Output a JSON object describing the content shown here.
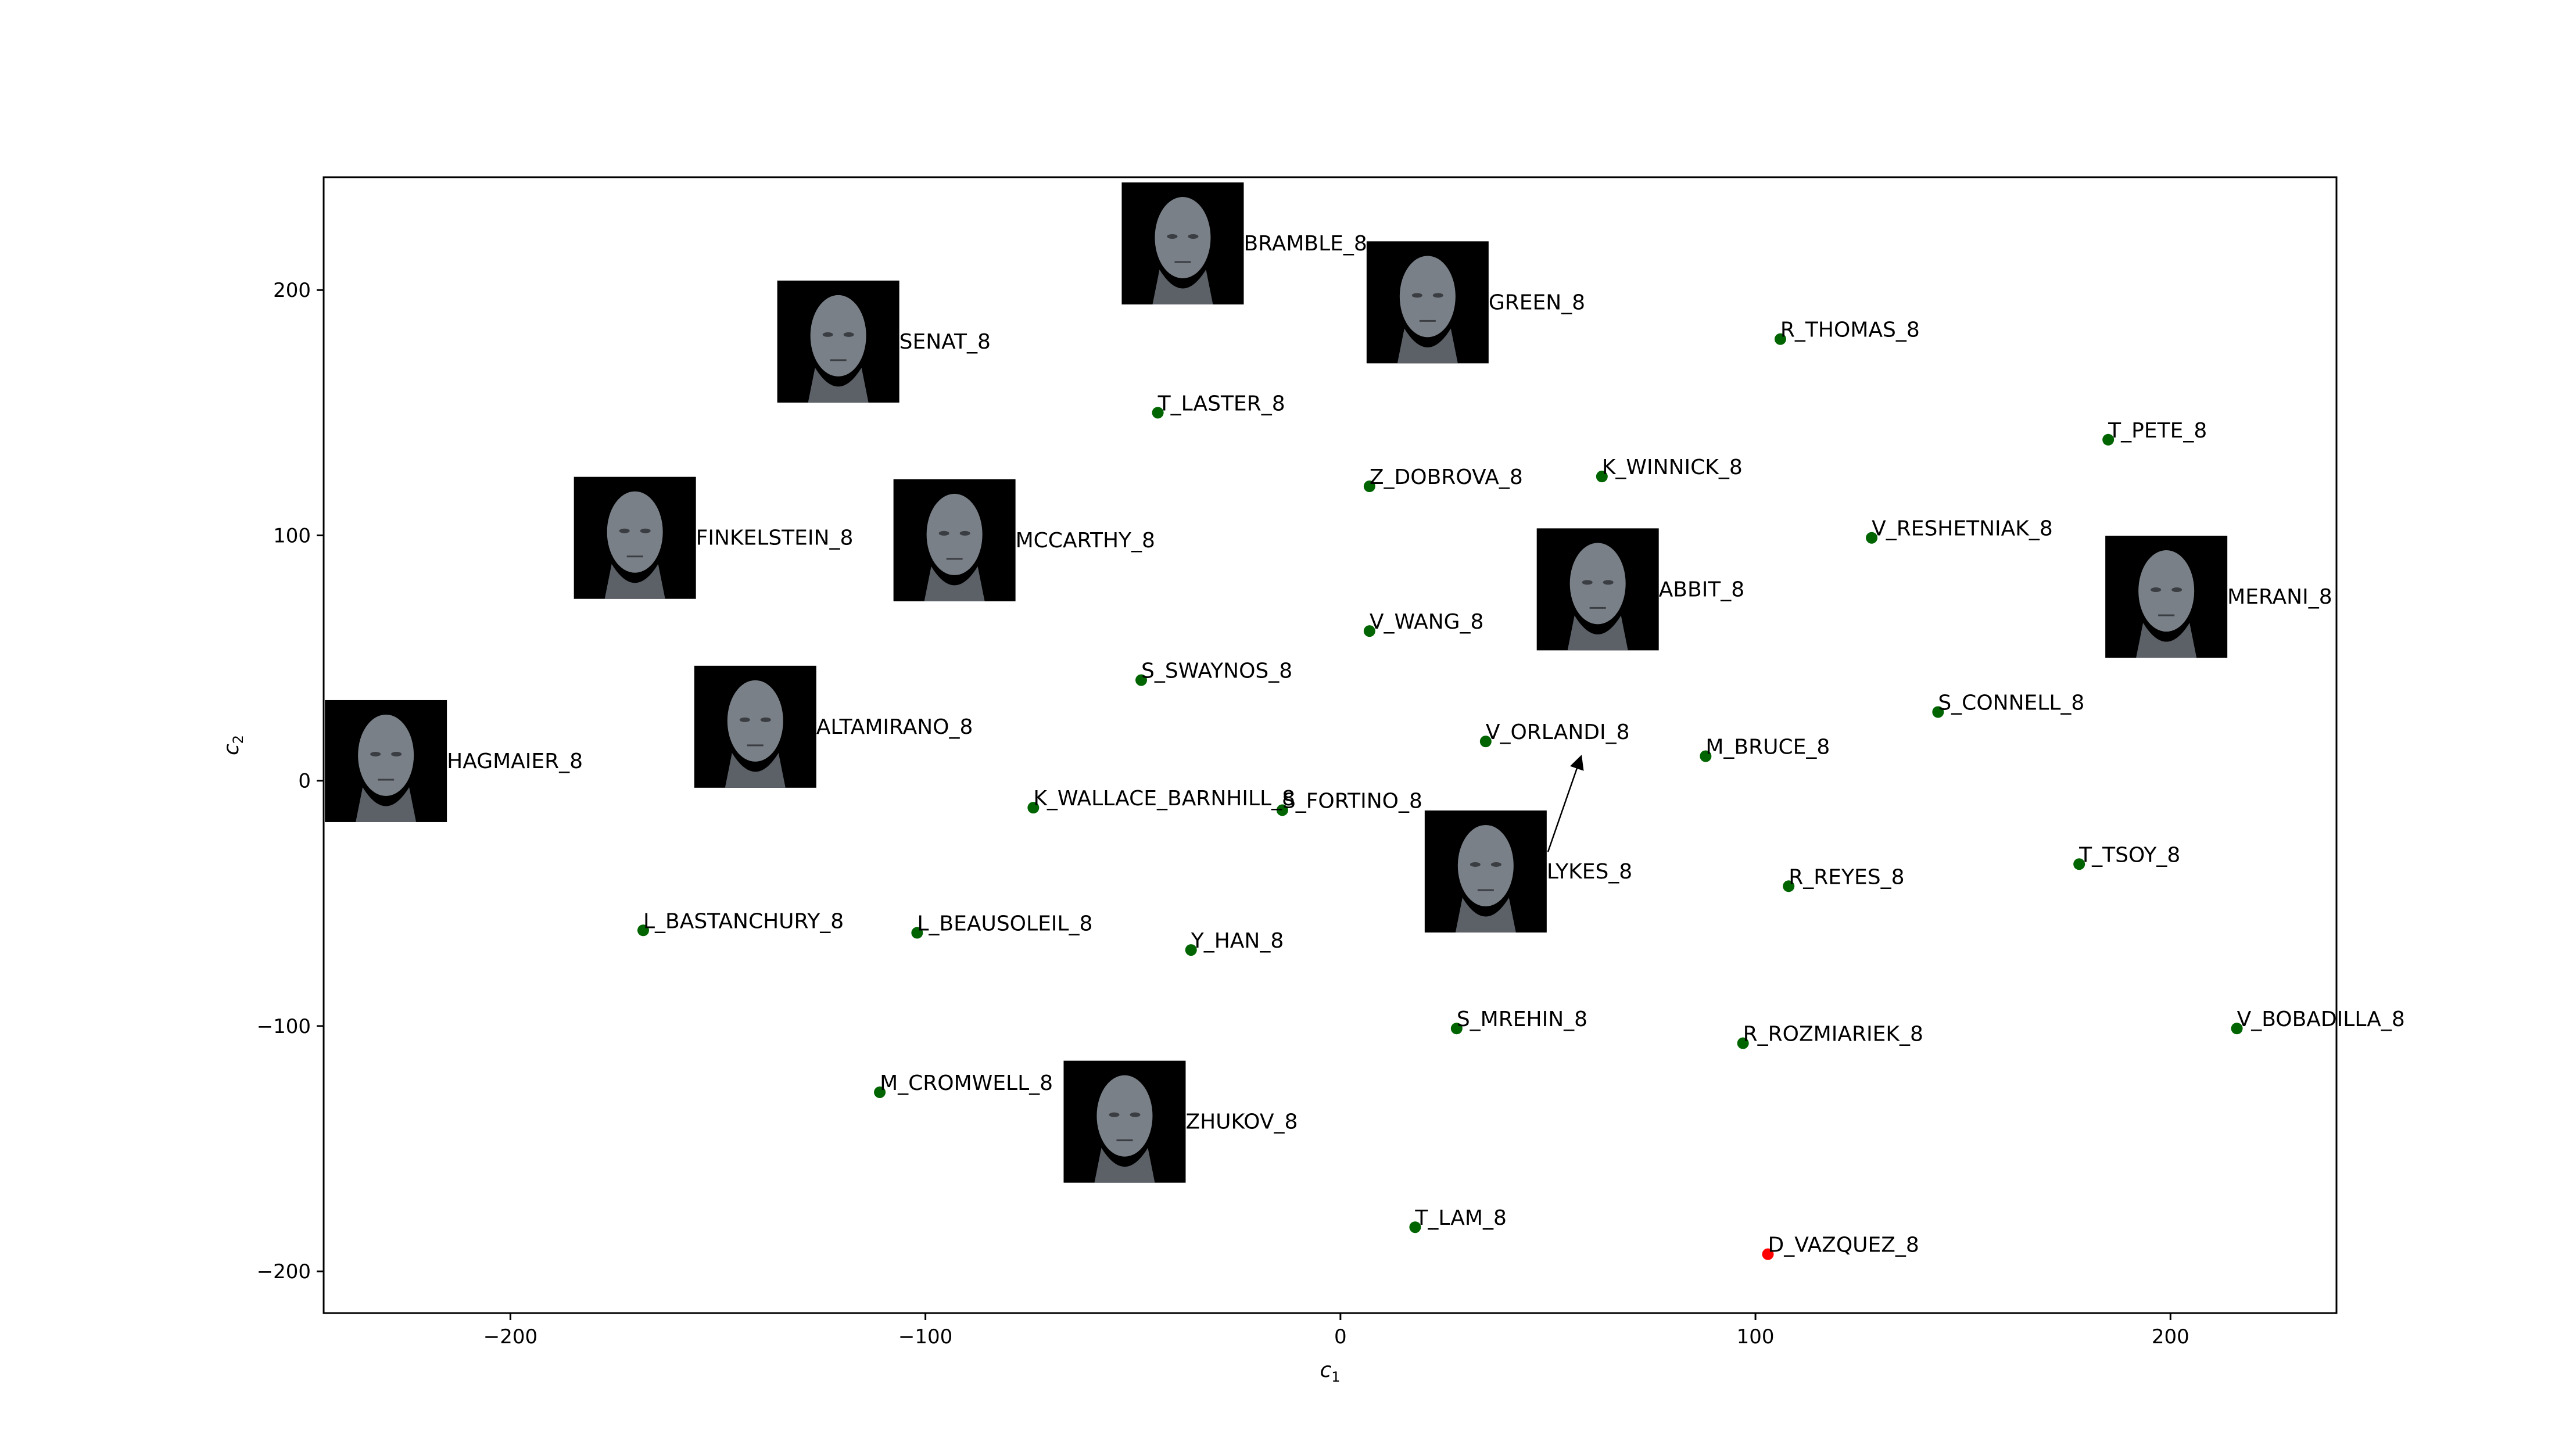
{
  "chart_data": {
    "type": "scatter",
    "title": "",
    "xlabel": "c",
    "xlabel_sub": "1",
    "ylabel": "c",
    "ylabel_sub": "2",
    "xlim": [
      -245,
      240
    ],
    "ylim": [
      -217,
      246
    ],
    "xticks": [
      -200,
      -100,
      0,
      100,
      200
    ],
    "yticks": [
      -200,
      -100,
      0,
      100,
      200
    ],
    "xtick_labels": [
      "−200",
      "−100",
      "0",
      "100",
      "200"
    ],
    "ytick_labels": [
      "−200",
      "−100",
      "0",
      "100",
      "200"
    ],
    "grid": false,
    "colors": {
      "point": "#006400",
      "highlight": "#ff0000",
      "face_bg": "#000000",
      "axes": "#000000"
    },
    "points": [
      {
        "label": "R_THOMAS_8",
        "x": 106,
        "y": 180,
        "color": "green"
      },
      {
        "label": "T_PETE_8",
        "x": 185,
        "y": 139,
        "color": "green"
      },
      {
        "label": "T_LASTER_8",
        "x": -44,
        "y": 150,
        "color": "green"
      },
      {
        "label": "Z_DOBROVA_8",
        "x": 7,
        "y": 120,
        "color": "green"
      },
      {
        "label": "K_WINNICK_8",
        "x": 63,
        "y": 124,
        "color": "green"
      },
      {
        "label": "V_RESHETNIAK_8",
        "x": 128,
        "y": 99,
        "color": "green"
      },
      {
        "label": "V_WANG_8",
        "x": 7,
        "y": 61,
        "color": "green"
      },
      {
        "label": "S_SWAYNOS_8",
        "x": -48,
        "y": 41,
        "color": "green"
      },
      {
        "label": "S_CONNELL_8",
        "x": 144,
        "y": 28,
        "color": "green"
      },
      {
        "label": "V_ORLANDI_8",
        "x": 35,
        "y": 16,
        "color": "green"
      },
      {
        "label": "M_BRUCE_8",
        "x": 88,
        "y": 10,
        "color": "green"
      },
      {
        "label": "K_WALLACE_BARNHILL_8",
        "x": -74,
        "y": -11,
        "color": "green"
      },
      {
        "label": "S_FORTINO_8",
        "x": -14,
        "y": -12,
        "color": "green"
      },
      {
        "label": "T_TSOY_8",
        "x": 178,
        "y": -34,
        "color": "green"
      },
      {
        "label": "R_REYES_8",
        "x": 108,
        "y": -43,
        "color": "green"
      },
      {
        "label": "L_BASTANCHURY_8",
        "x": -168,
        "y": -61,
        "color": "green"
      },
      {
        "label": "L_BEAUSOLEIL_8",
        "x": -102,
        "y": -62,
        "color": "green"
      },
      {
        "label": "Y_HAN_8",
        "x": -36,
        "y": -69,
        "color": "green"
      },
      {
        "label": "S_MREHIN_8",
        "x": 28,
        "y": -101,
        "color": "green"
      },
      {
        "label": "R_ROZMIARIEK_8",
        "x": 97,
        "y": -107,
        "color": "green"
      },
      {
        "label": "V_BOBADILLA_8",
        "x": 216,
        "y": -101,
        "color": "green"
      },
      {
        "label": "M_CROMWELL_8",
        "x": -111,
        "y": -127,
        "color": "green"
      },
      {
        "label": "T_LAM_8",
        "x": 18,
        "y": -182,
        "color": "green"
      },
      {
        "label": "D_VAZQUEZ_8",
        "x": 103,
        "y": -193,
        "color": "red"
      }
    ],
    "image_points": [
      {
        "label": "BRAMBLE_8",
        "x": -38,
        "y": 219
      },
      {
        "label": "GREEN_8",
        "x": 21,
        "y": 195
      },
      {
        "label": "SENAT_8",
        "x": -121,
        "y": 179
      },
      {
        "label": "FINKELSTEIN_8",
        "x": -170,
        "y": 99
      },
      {
        "label": "MCCARTHY_8",
        "x": -93,
        "y": 98
      },
      {
        "label": "ABBIT_8",
        "x": 62,
        "y": 78
      },
      {
        "label": "MERANI_8",
        "x": 199,
        "y": 75
      },
      {
        "label": "ALTAMIRANO_8",
        "x": -141,
        "y": 22
      },
      {
        "label": "HAGMAIER_8",
        "x": -230,
        "y": 8
      },
      {
        "label": "LYKES_8",
        "x": 35,
        "y": -37
      },
      {
        "label": "ZHUKOV_8",
        "x": -52,
        "y": -139
      }
    ],
    "arrow": {
      "from": [
        50,
        -29
      ],
      "to": [
        58,
        10
      ]
    }
  }
}
